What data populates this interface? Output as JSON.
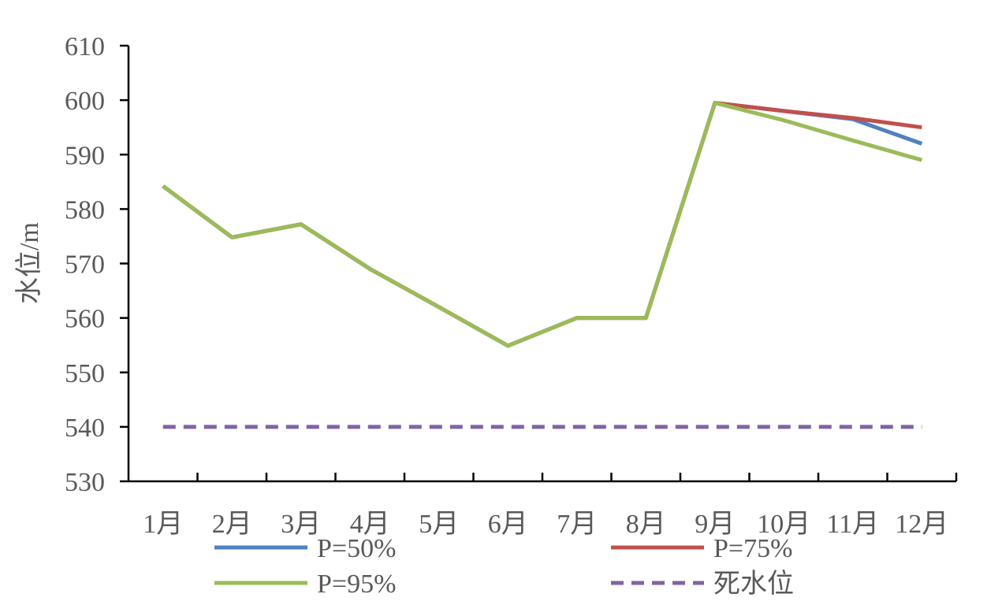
{
  "chart_data": {
    "type": "line",
    "title": "",
    "xlabel": "",
    "ylabel": "水位/m",
    "categories": [
      "1月",
      "2月",
      "3月",
      "4月",
      "5月",
      "6月",
      "7月",
      "8月",
      "9月",
      "10月",
      "11月",
      "12月"
    ],
    "ylim": [
      530,
      610
    ],
    "yticks": [
      530,
      540,
      550,
      560,
      570,
      580,
      590,
      600,
      610
    ],
    "grid": false,
    "legend_position": "bottom",
    "series": [
      {
        "name": "P=50%",
        "color": "#4f81bd",
        "dash": "solid",
        "values": [
          584.2,
          574.8,
          577.2,
          569.0,
          562.0,
          554.9,
          560.0,
          560.0,
          599.5,
          598.0,
          596.5,
          592.0
        ]
      },
      {
        "name": "P=75%",
        "color": "#c0504d",
        "dash": "solid",
        "values": [
          584.2,
          574.8,
          577.2,
          569.0,
          562.0,
          554.9,
          560.0,
          560.0,
          599.5,
          598.0,
          596.7,
          595.0
        ]
      },
      {
        "name": "P=95%",
        "color": "#9bbb59",
        "dash": "solid",
        "values": [
          584.2,
          574.8,
          577.2,
          569.0,
          562.0,
          554.9,
          560.0,
          560.0,
          599.5,
          596.3,
          592.6,
          589.0
        ]
      },
      {
        "name": "死水位",
        "color": "#8064a2",
        "dash": "dashed",
        "values": [
          540,
          540,
          540,
          540,
          540,
          540,
          540,
          540,
          540,
          540,
          540,
          540
        ]
      }
    ]
  }
}
